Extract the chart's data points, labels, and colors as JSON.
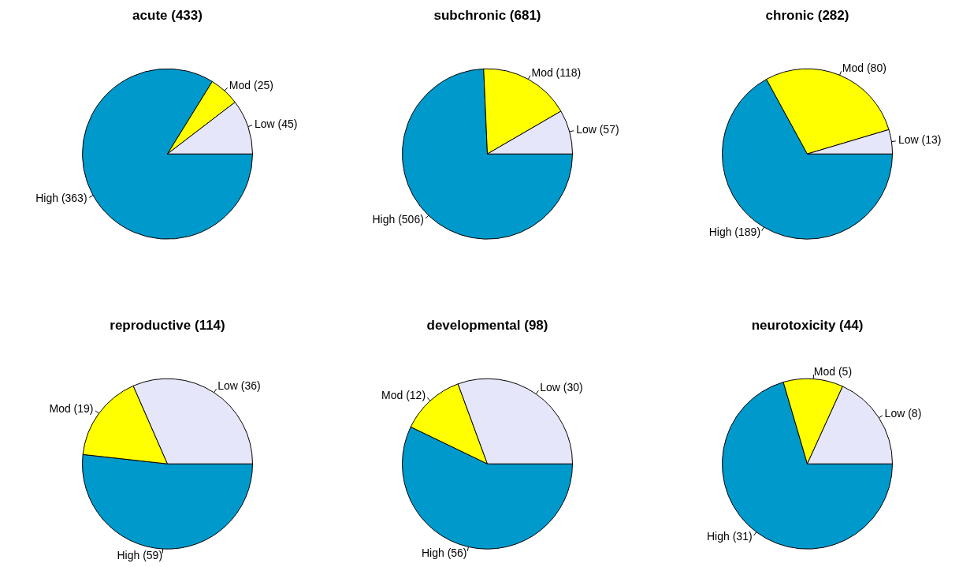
{
  "chart_data": [
    {
      "type": "pie",
      "title": "acute (433)",
      "categories": [
        "Low (45)",
        "Mod (25)",
        "High (363)"
      ],
      "values": [
        45,
        25,
        363
      ],
      "colors": [
        "#e6e6fa",
        "#ffff00",
        "#0099cc"
      ],
      "legend": false
    },
    {
      "type": "pie",
      "title": "subchronic (681)",
      "categories": [
        "Low (57)",
        "Mod (118)",
        "High (506)"
      ],
      "values": [
        57,
        118,
        506
      ],
      "colors": [
        "#e6e6fa",
        "#ffff00",
        "#0099cc"
      ],
      "legend": false
    },
    {
      "type": "pie",
      "title": "chronic (282)",
      "categories": [
        "Low (13)",
        "Mod (80)",
        "High (189)"
      ],
      "values": [
        13,
        80,
        189
      ],
      "colors": [
        "#e6e6fa",
        "#ffff00",
        "#0099cc"
      ],
      "legend": false
    },
    {
      "type": "pie",
      "title": "reproductive (114)",
      "categories": [
        "Low (36)",
        "Mod (19)",
        "High (59)"
      ],
      "values": [
        36,
        19,
        59
      ],
      "colors": [
        "#e6e6fa",
        "#ffff00",
        "#0099cc"
      ],
      "legend": false
    },
    {
      "type": "pie",
      "title": "developmental (98)",
      "categories": [
        "Low (30)",
        "Mod (12)",
        "High (56)"
      ],
      "values": [
        30,
        12,
        56
      ],
      "colors": [
        "#e6e6fa",
        "#ffff00",
        "#0099cc"
      ],
      "legend": false
    },
    {
      "type": "pie",
      "title": "neurotoxicity (44)",
      "categories": [
        "Low (8)",
        "Mod (5)",
        "High (31)"
      ],
      "values": [
        8,
        5,
        31
      ],
      "colors": [
        "#e6e6fa",
        "#ffff00",
        "#0099cc"
      ],
      "legend": false
    }
  ]
}
